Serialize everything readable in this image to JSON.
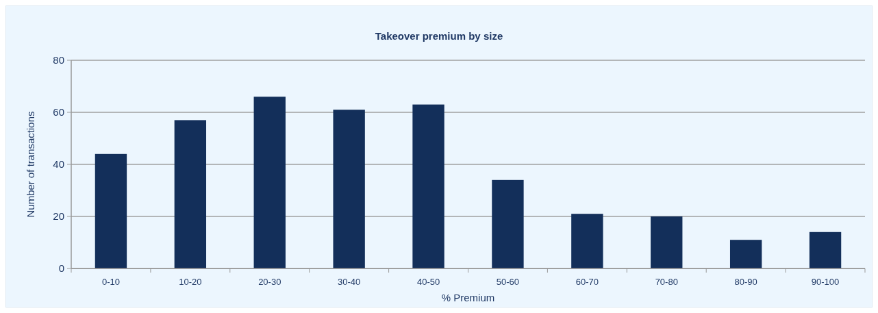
{
  "chart_data": {
    "type": "bar",
    "title": "Takeover premium by size",
    "xlabel": "% Premium",
    "ylabel": "Number of transactions",
    "categories": [
      "0-10",
      "10-20",
      "20-30",
      "30-40",
      "40-50",
      "50-60",
      "60-70",
      "70-80",
      "80-90",
      "90-100"
    ],
    "values": [
      44,
      57,
      66,
      61,
      63,
      34,
      21,
      20,
      11,
      14
    ],
    "color": "#132f5a",
    "ylim": [
      0,
      80
    ],
    "yticks": [
      0,
      20,
      40,
      60,
      80
    ],
    "grid": "y"
  }
}
